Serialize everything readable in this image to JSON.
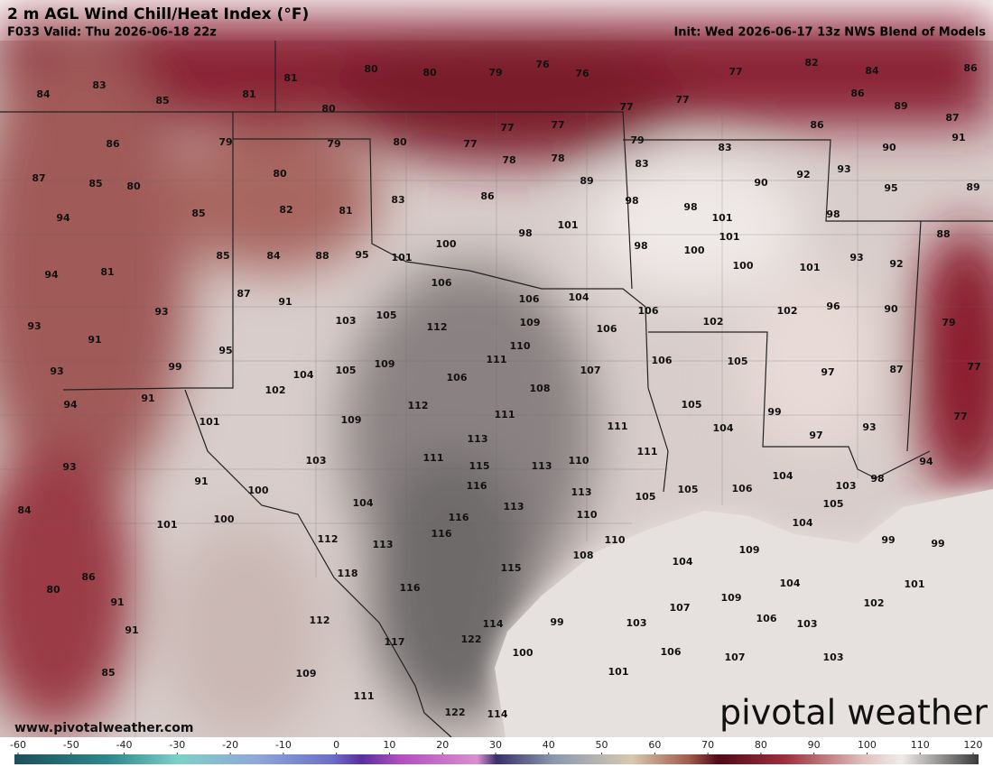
{
  "header": {
    "title": "2 m AGL Wind Chill/Heat Index (°F)",
    "valid": "F033 Valid: Thu 2026-06-18 22z",
    "init": "Init: Wed 2026-06-17 13z NWS Blend of Models"
  },
  "map_labels": [
    84,
    83,
    85,
    81,
    81,
    80,
    80,
    79,
    76,
    76,
    77,
    82,
    84,
    86,
    80,
    77,
    77,
    86,
    89,
    87,
    86,
    91,
    86,
    79,
    79,
    80,
    77,
    77,
    77,
    78,
    78,
    79,
    83,
    83,
    90,
    87,
    85,
    80,
    80,
    92,
    90,
    93,
    95,
    89,
    89,
    86,
    83,
    94,
    85,
    82,
    81,
    98,
    98,
    101,
    98,
    101,
    98,
    100,
    94,
    81,
    85,
    84,
    88,
    95,
    101,
    98,
    100,
    101,
    100,
    93,
    92,
    88,
    101,
    87,
    91,
    106,
    106,
    104,
    106,
    102,
    96,
    90,
    79,
    102,
    93,
    93,
    103,
    105,
    112,
    109,
    106,
    91,
    95,
    110,
    111,
    106,
    105,
    107,
    97,
    87,
    77,
    93,
    99,
    104,
    105,
    109,
    106,
    108,
    91,
    94,
    102,
    101,
    109,
    112,
    111,
    111,
    105,
    104,
    99,
    97,
    93,
    77,
    93,
    103,
    113,
    111,
    115,
    113,
    110,
    111,
    104,
    98,
    94,
    91,
    100,
    116,
    113,
    105,
    105,
    106,
    103,
    84,
    101,
    100,
    104,
    113,
    110,
    116,
    116,
    104,
    105,
    112,
    113,
    110,
    108,
    109,
    99,
    99,
    118,
    115,
    104,
    104,
    101,
    86,
    80,
    91,
    116,
    109,
    102,
    112,
    114,
    99,
    103,
    107,
    106,
    103,
    91,
    117,
    122,
    100,
    106,
    107,
    103,
    85,
    109,
    101,
    111,
    122,
    114
  ],
  "url": "www.pivotalweather.com",
  "watermark": "pivotal weather",
  "colorbar": {
    "ticks": [
      -60,
      -50,
      -40,
      -30,
      -20,
      -10,
      0,
      10,
      20,
      30,
      40,
      50,
      60,
      70,
      80,
      90,
      100,
      110,
      120
    ]
  }
}
